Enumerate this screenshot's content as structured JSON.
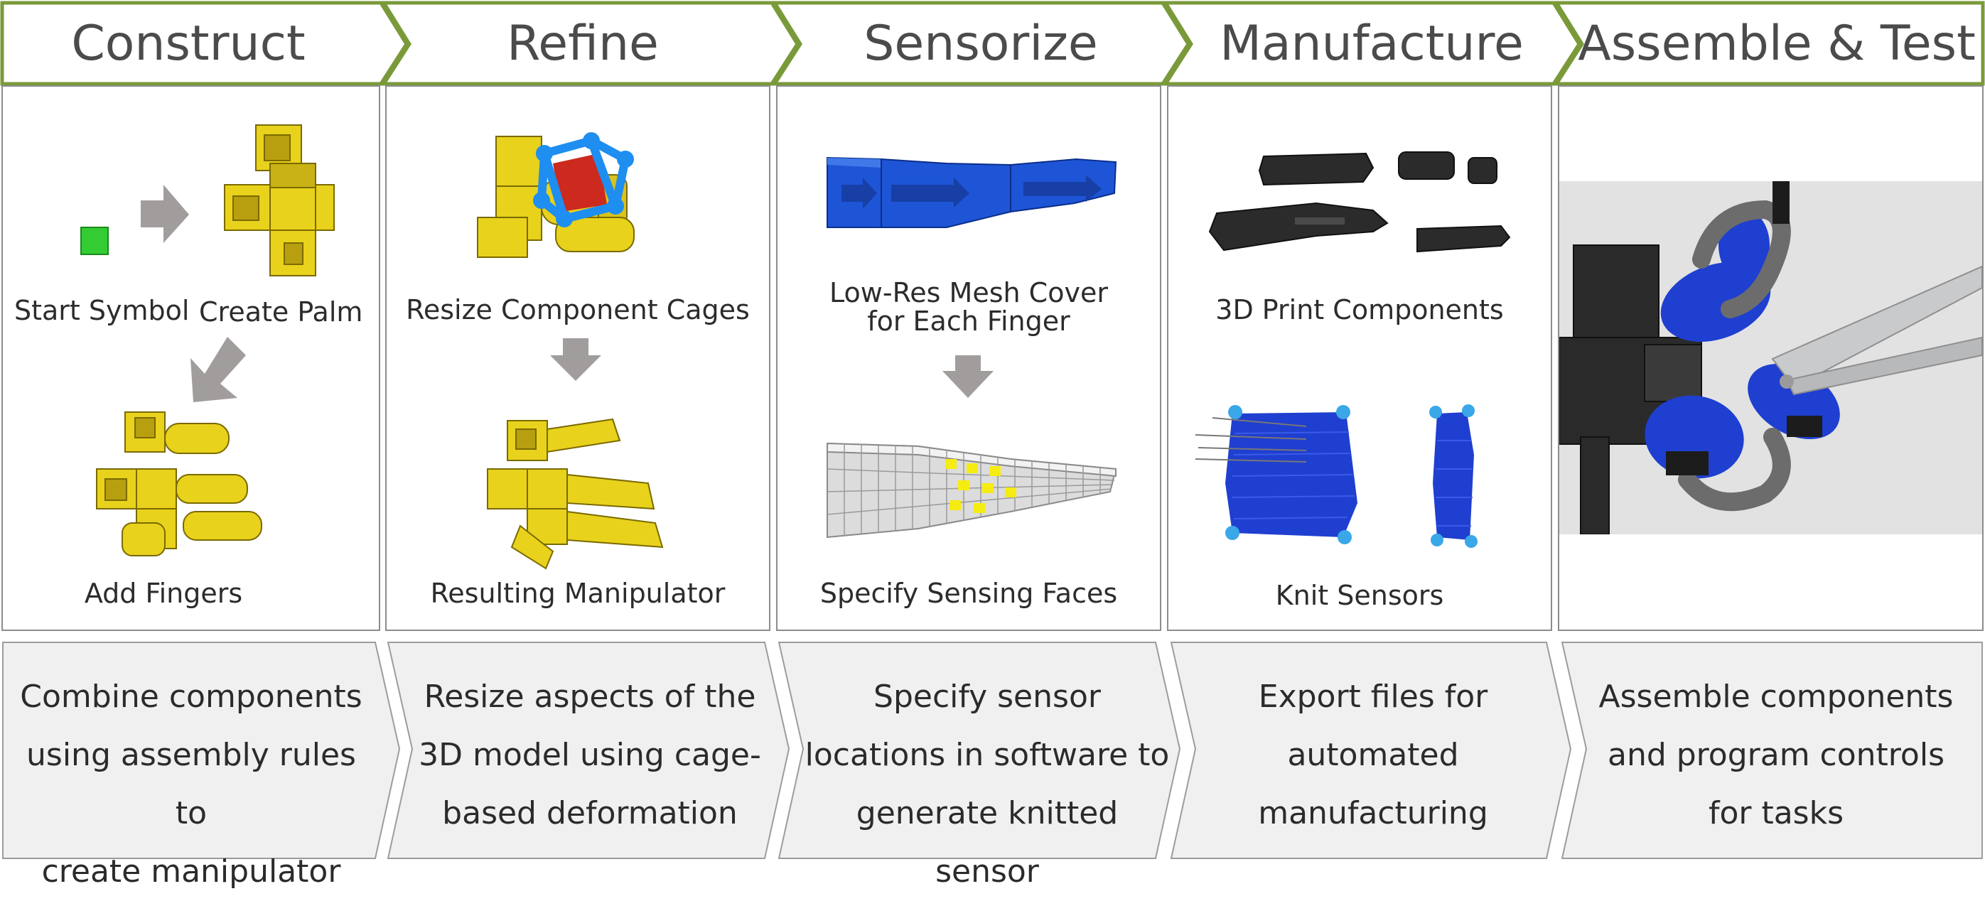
{
  "colors": {
    "header_border": "#7a9a3a",
    "panel_border": "#8c8c8c",
    "chevron_fill": "#f0f0f0",
    "arrow_gray": "#a19d9d",
    "gold": "#e8d21c",
    "blue_knit": "#1f3fd0",
    "mesh_blue": "#1e55d6",
    "start_green": "#33cc33"
  },
  "steps": [
    {
      "title": "Construct",
      "captions": [
        "Start Symbol",
        "Create Palm",
        "Add Fingers"
      ],
      "description": [
        "Combine components",
        "using assembly rules to",
        "create manipulator"
      ]
    },
    {
      "title": "Refine",
      "captions": [
        "Resize Component Cages",
        "Resulting Manipulator"
      ],
      "description": [
        "Resize aspects of the",
        "3D model using cage-",
        "based deformation"
      ]
    },
    {
      "title": "Sensorize",
      "captions": [
        "Low-Res Mesh Cover",
        "for Each Finger",
        "Specify Sensing Faces"
      ],
      "description": [
        "Specify sensor",
        "locations in software to",
        "generate knitted sensor"
      ]
    },
    {
      "title": "Manufacture",
      "captions": [
        "3D Print Components",
        "Knit Sensors"
      ],
      "description": [
        "Export files for",
        "automated",
        "manufacturing"
      ]
    },
    {
      "title": "Assemble & Test",
      "captions": [],
      "description": [
        "Assemble components",
        "and program controls",
        "for tasks"
      ]
    }
  ]
}
